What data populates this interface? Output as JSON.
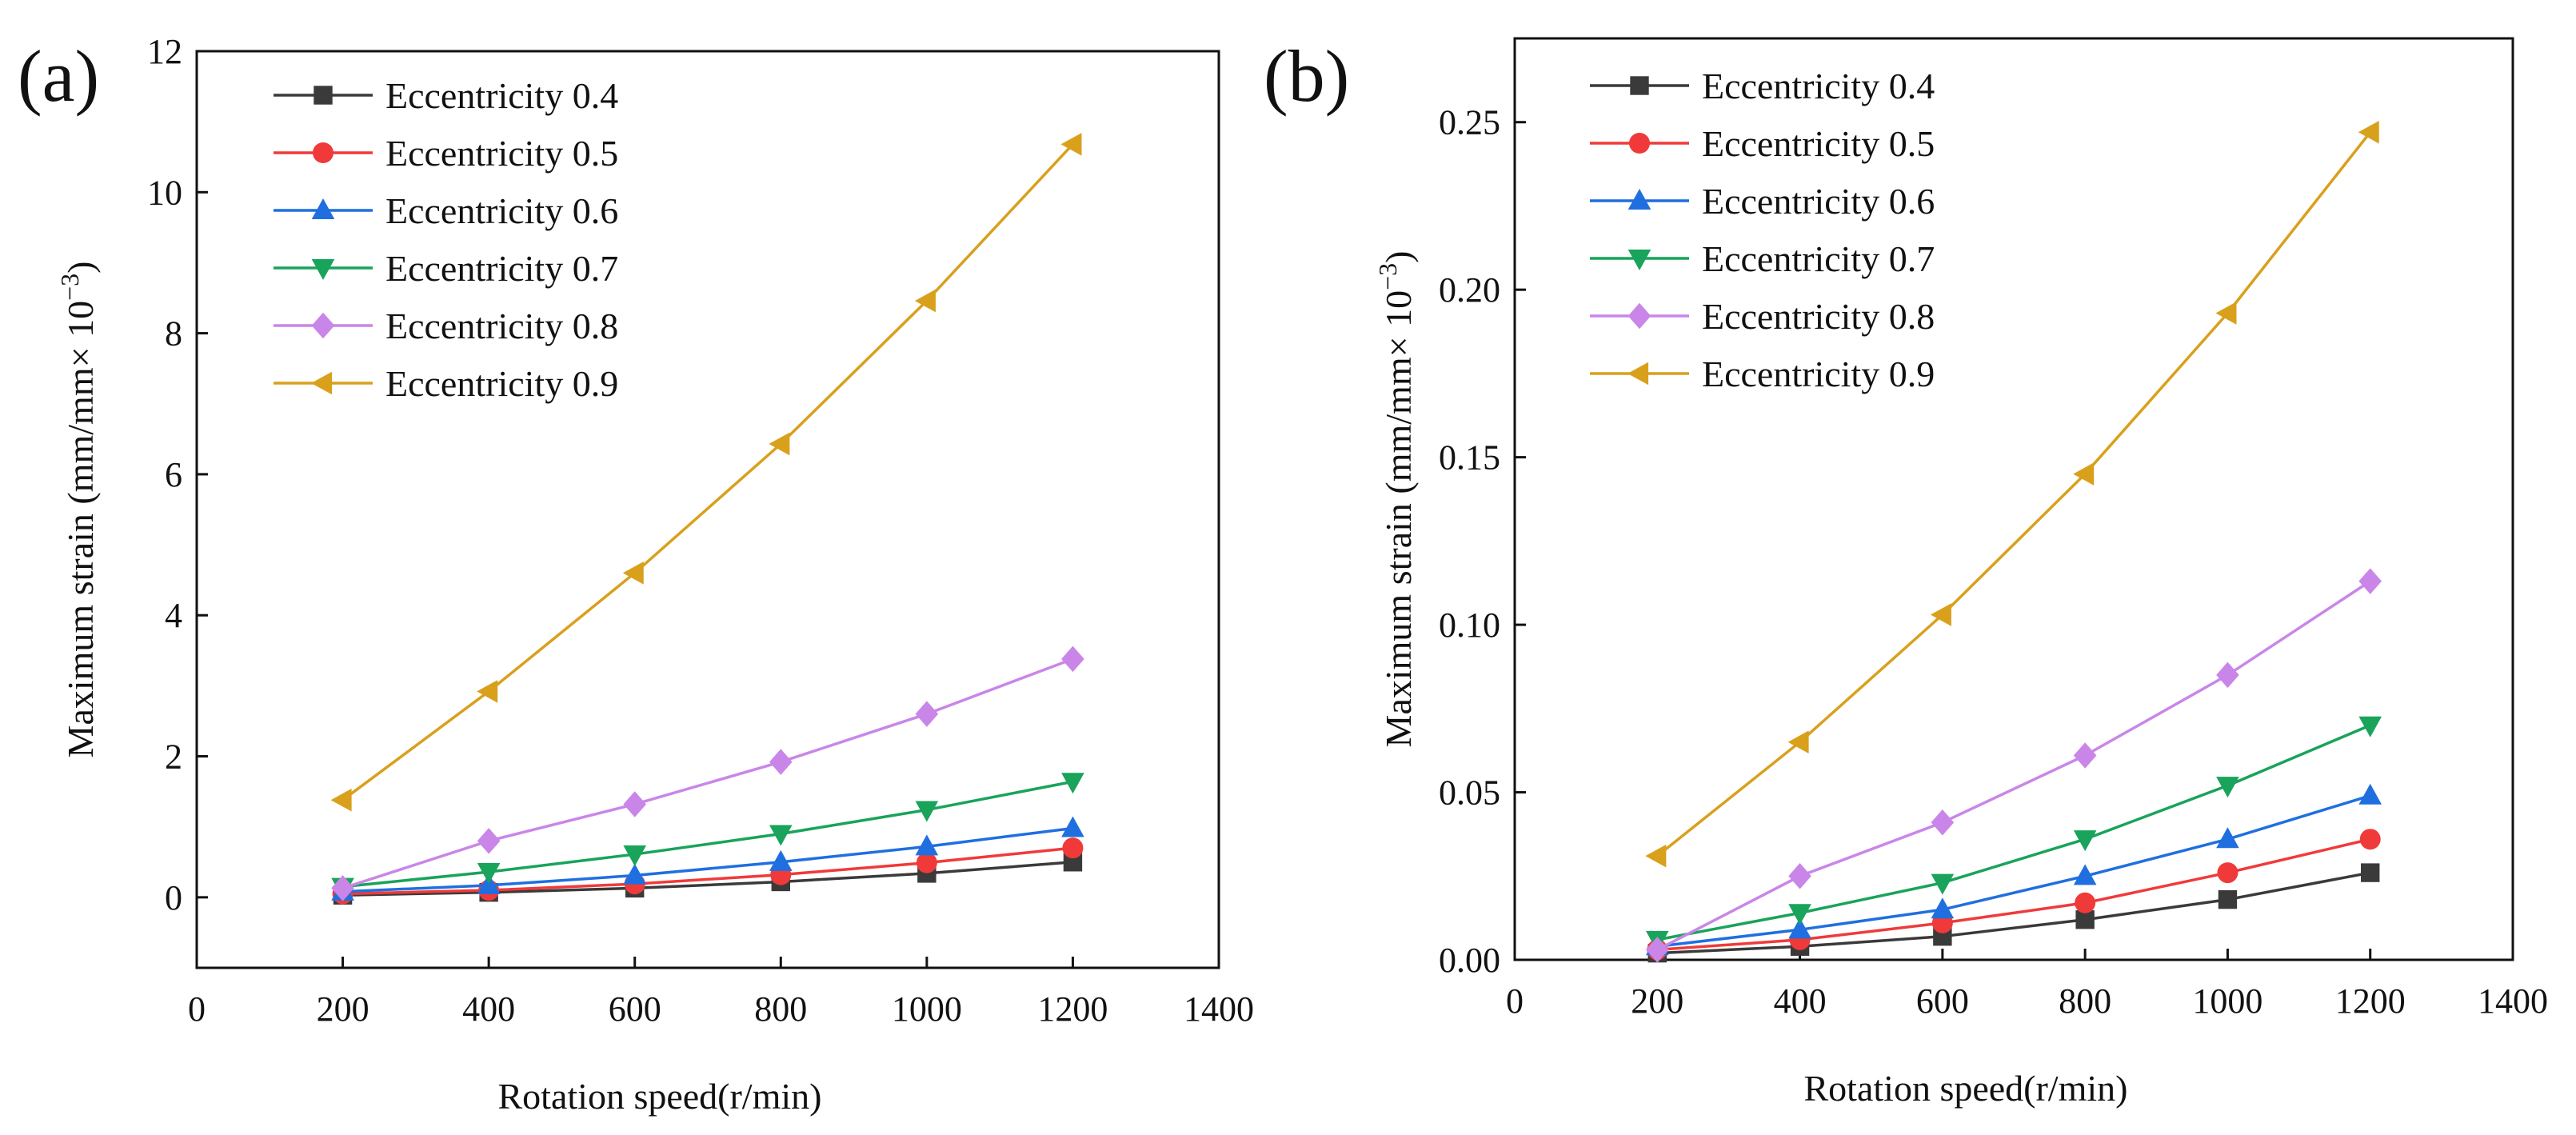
{
  "chart_data": [
    {
      "panel_label": "(a)",
      "type": "line",
      "xlabel": "Rotation speed(r/min)",
      "ylabel": "Maximum strain (mm/mm× 10",
      "ylabel_exp": "−3",
      "ylabel_close": ")",
      "xlim": [
        0,
        1400
      ],
      "ylim": [
        -1,
        12
      ],
      "xticks": [
        0,
        200,
        400,
        600,
        800,
        1000,
        1200,
        1400
      ],
      "yticks": [
        0,
        2,
        4,
        6,
        8,
        10,
        12
      ],
      "x": [
        200,
        400,
        600,
        800,
        1000,
        1200
      ],
      "series": [
        {
          "name": "Eccentricity 0.4",
          "color": "#3a3a3a",
          "marker": "square",
          "values": [
            0.03,
            0.07,
            0.13,
            0.22,
            0.34,
            0.5
          ]
        },
        {
          "name": "Eccentricity 0.5",
          "color": "#f03a3a",
          "marker": "circle",
          "values": [
            0.05,
            0.1,
            0.19,
            0.32,
            0.49,
            0.7
          ]
        },
        {
          "name": "Eccentricity 0.6",
          "color": "#1f6fe0",
          "marker": "triangle-up",
          "values": [
            0.08,
            0.17,
            0.31,
            0.5,
            0.72,
            0.98
          ]
        },
        {
          "name": "Eccentricity 0.7",
          "color": "#19a35b",
          "marker": "triangle-down",
          "values": [
            0.15,
            0.36,
            0.61,
            0.9,
            1.24,
            1.64
          ]
        },
        {
          "name": "Eccentricity 0.8",
          "color": "#c986e8",
          "marker": "diamond",
          "values": [
            0.13,
            0.8,
            1.32,
            1.92,
            2.6,
            3.38
          ]
        },
        {
          "name": "Eccentricity 0.9",
          "color": "#d9a01c",
          "marker": "triangle-left",
          "values": [
            1.38,
            2.92,
            4.6,
            6.43,
            8.46,
            10.68
          ]
        }
      ]
    },
    {
      "panel_label": "(b)",
      "type": "line",
      "xlabel": "Rotation speed(r/min)",
      "ylabel": "Maximum strain (mm/mm× 10",
      "ylabel_exp": "−3",
      "ylabel_close": ")",
      "xlim": [
        0,
        1400
      ],
      "ylim": [
        0,
        0.275
      ],
      "xticks": [
        0,
        200,
        400,
        600,
        800,
        1000,
        1200,
        1400
      ],
      "yticks": [
        0,
        0.05,
        0.1,
        0.15,
        0.2,
        0.25
      ],
      "ytick_labels": [
        "0.00",
        "0.05",
        "0.10",
        "0.15",
        "0.20",
        "0.25"
      ],
      "x": [
        200,
        400,
        600,
        800,
        1000,
        1200
      ],
      "series": [
        {
          "name": "Eccentricity 0.4",
          "color": "#3a3a3a",
          "marker": "square",
          "values": [
            0.002,
            0.004,
            0.007,
            0.012,
            0.018,
            0.026
          ]
        },
        {
          "name": "Eccentricity 0.5",
          "color": "#f03a3a",
          "marker": "circle",
          "values": [
            0.003,
            0.006,
            0.011,
            0.017,
            0.026,
            0.036
          ]
        },
        {
          "name": "Eccentricity 0.6",
          "color": "#1f6fe0",
          "marker": "triangle-up",
          "values": [
            0.004,
            0.009,
            0.015,
            0.025,
            0.036,
            0.049
          ]
        },
        {
          "name": "Eccentricity 0.7",
          "color": "#19a35b",
          "marker": "triangle-down",
          "values": [
            0.006,
            0.014,
            0.023,
            0.036,
            0.052,
            0.07
          ]
        },
        {
          "name": "Eccentricity 0.8",
          "color": "#c986e8",
          "marker": "diamond",
          "values": [
            0.003,
            0.025,
            0.041,
            0.061,
            0.085,
            0.113
          ]
        },
        {
          "name": "Eccentricity 0.9",
          "color": "#d9a01c",
          "marker": "triangle-left",
          "values": [
            0.031,
            0.065,
            0.103,
            0.145,
            0.193,
            0.247
          ]
        }
      ]
    }
  ]
}
